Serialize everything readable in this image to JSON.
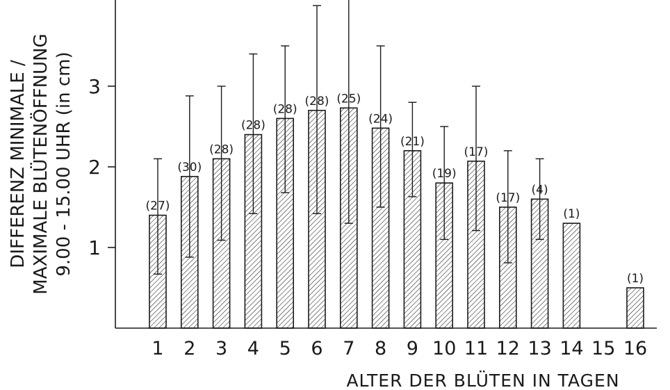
{
  "chart_data": {
    "type": "bar",
    "categories": [
      "1",
      "2",
      "3",
      "4",
      "5",
      "6",
      "7",
      "8",
      "9",
      "10",
      "11",
      "12",
      "13",
      "14",
      "15",
      "16"
    ],
    "values": [
      1.4,
      1.88,
      2.1,
      2.4,
      2.6,
      2.7,
      2.73,
      2.48,
      2.2,
      1.8,
      2.07,
      1.5,
      1.6,
      1.3,
      null,
      0.5
    ],
    "error_high": [
      2.1,
      2.88,
      3.0,
      3.4,
      3.5,
      4.0,
      4.2,
      3.5,
      2.8,
      2.5,
      3.0,
      2.2,
      2.1,
      null,
      null,
      null
    ],
    "error_low": [
      0.67,
      0.88,
      1.09,
      1.42,
      1.68,
      1.42,
      1.3,
      1.5,
      1.63,
      1.1,
      1.21,
      0.81,
      1.1,
      null,
      null,
      null
    ],
    "n_labels": [
      "(27)",
      "(30)",
      "(28)",
      "(28)",
      "(28)",
      "(28)",
      "(25)",
      "(24)",
      "(21)",
      "(19)",
      "(17)",
      "(17)",
      "(4)",
      "(1)",
      "",
      "(1)"
    ],
    "ylim": [
      0,
      4.2
    ],
    "yticks": [
      "1",
      "2",
      "3"
    ],
    "ytick_values": [
      1,
      2,
      3
    ],
    "ylabel_lines": [
      "DIFFERENZ MINIMALE /",
      "MAXIMALE BLÜTENÖFFNUNG",
      "9.00 - 15.00 UHR  (in cm)"
    ],
    "xlabel": "ALTER DER BLÜTEN IN TAGEN",
    "bar_fill": "hatched",
    "color": "#1a1a1a"
  }
}
